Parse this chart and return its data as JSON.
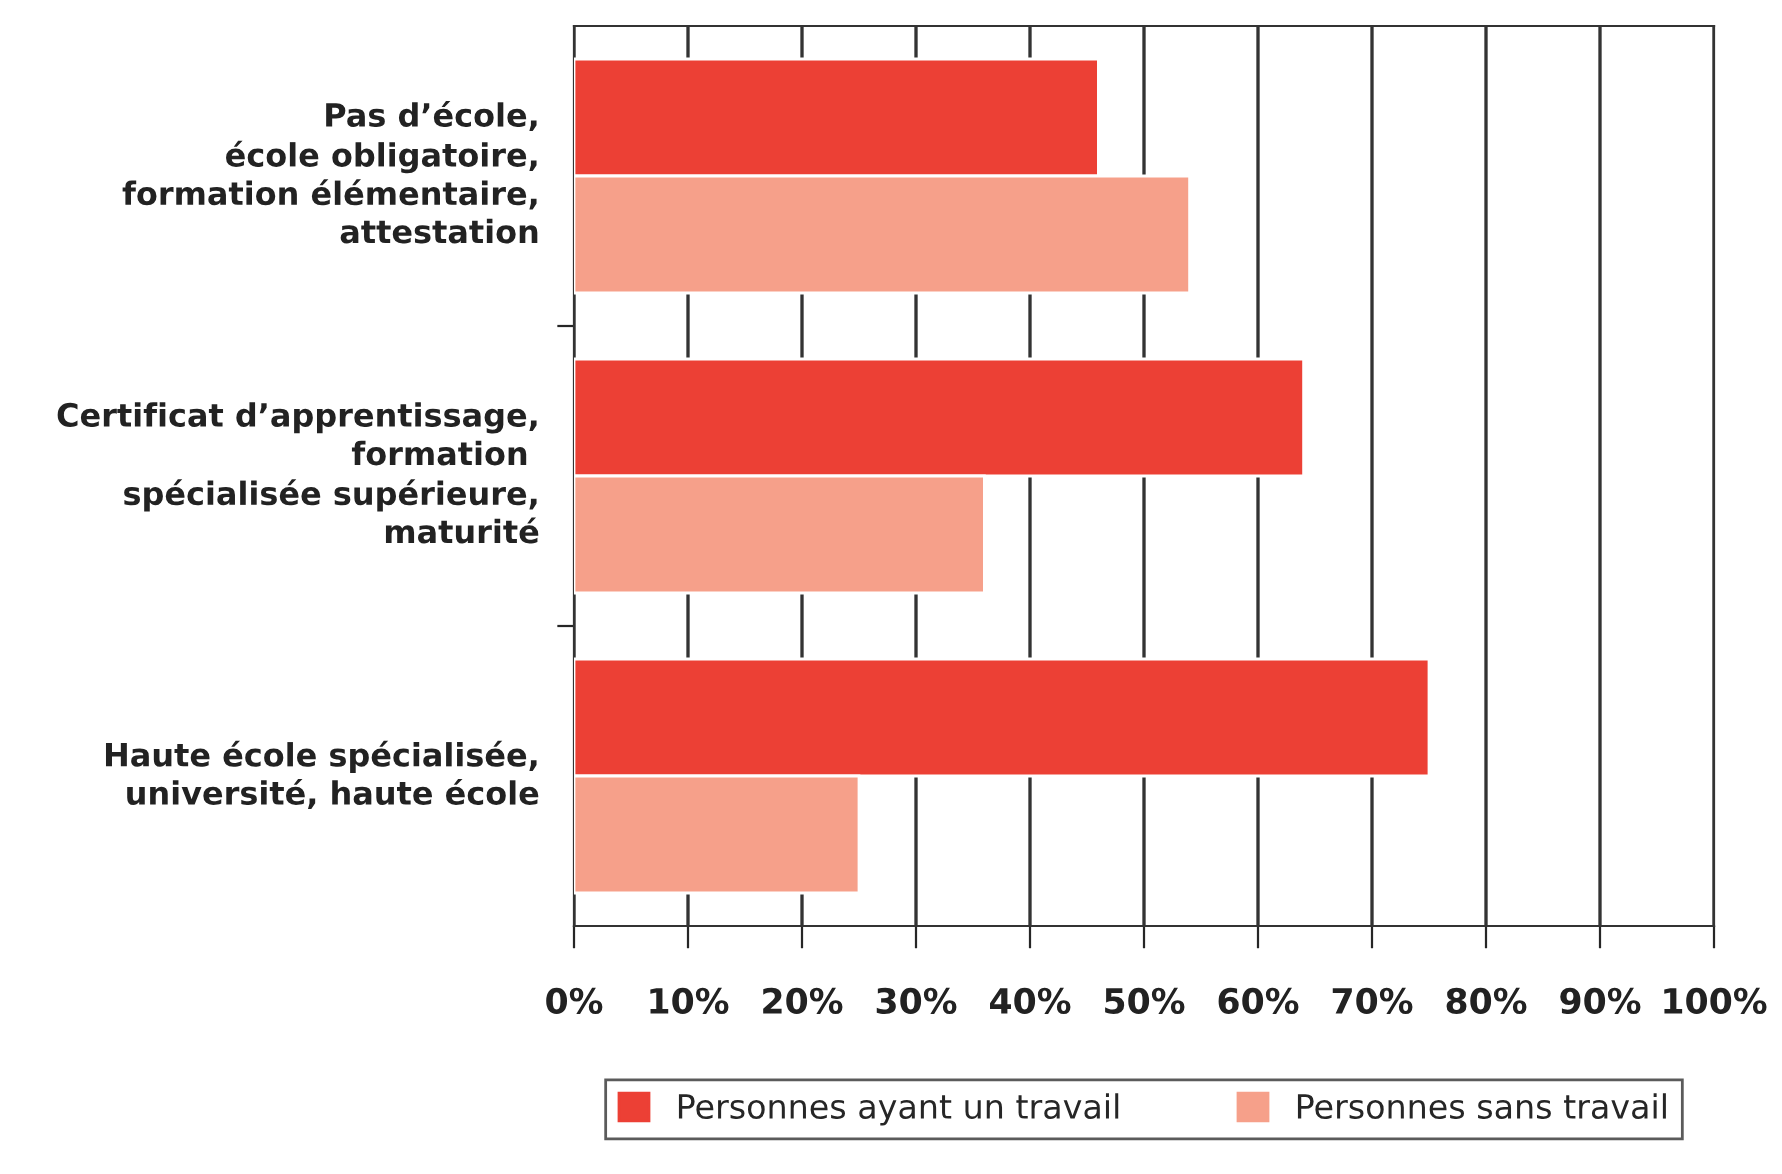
{
  "chart_data": {
    "type": "bar",
    "orientation": "horizontal",
    "categories": [
      "Pas d’école,\nécole obligatoire,\nformation élémentaire,\nattestation",
      "Certificat d’apprentissage,\nformation \nspécialisée supérieure,\nmaturité",
      "Haute école spécialisée,\nuniversité, haute école"
    ],
    "series": [
      {
        "name": "Personnes ayant un travail",
        "color": "#ec4035",
        "values": [
          46,
          64,
          75
        ]
      },
      {
        "name": "Personnes sans travail",
        "color": "#f6a08a",
        "values": [
          54,
          36,
          25
        ]
      }
    ],
    "xlim": [
      0,
      100
    ],
    "xticks": [
      {
        "value": 0,
        "label": "0%"
      },
      {
        "value": 10,
        "label": "10%"
      },
      {
        "value": 20,
        "label": "20%"
      },
      {
        "value": 30,
        "label": "30%"
      },
      {
        "value": 40,
        "label": "40%"
      },
      {
        "value": 50,
        "label": "50%"
      },
      {
        "value": 60,
        "label": "60%"
      },
      {
        "value": 70,
        "label": "70%"
      },
      {
        "value": 80,
        "label": "80%"
      },
      {
        "value": 90,
        "label": "90%"
      },
      {
        "value": 100,
        "label": "100%"
      }
    ],
    "grid": "x",
    "legend": "bottom"
  }
}
